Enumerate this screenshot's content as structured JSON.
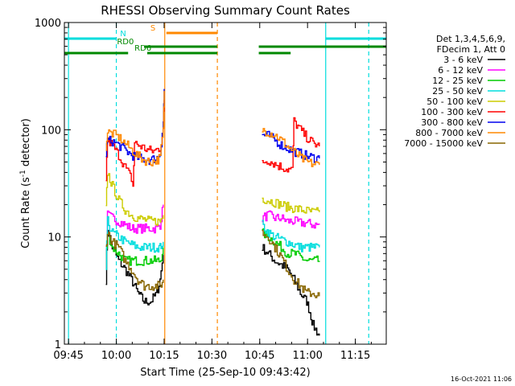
{
  "chart_data": {
    "type": "line",
    "title": "RHESSI Observing Summary Count Rates",
    "xlabel": "Start Time (25-Sep-10 09:43:42)",
    "ylabel_main": "Count Rate (s",
    "ylabel_sup": "-1",
    "ylabel_mid": " detector",
    "ylabel_end": ")",
    "yscale": "log",
    "ylim": [
      1,
      1000
    ],
    "xlim_minutes": [
      0,
      101
    ],
    "x_ticks": [
      {
        "m": 1.3,
        "label": "09:45"
      },
      {
        "m": 16.3,
        "label": "10:00"
      },
      {
        "m": 31.3,
        "label": "10:15"
      },
      {
        "m": 46.3,
        "label": "10:30"
      },
      {
        "m": 61.3,
        "label": "10:45"
      },
      {
        "m": 76.3,
        "label": "11:00"
      },
      {
        "m": 91.3,
        "label": "11:15"
      }
    ],
    "y_ticks": [
      {
        "v": 1,
        "label": "1"
      },
      {
        "v": 10,
        "label": "10"
      },
      {
        "v": 100,
        "label": "100"
      },
      {
        "v": 1000,
        "label": "1000"
      }
    ],
    "legend_header": [
      "Det 1,3,4,5,6,9,",
      "FDecim 1, Att 0"
    ],
    "series": [
      {
        "name": "3 - 6 keV",
        "color": "#000000",
        "segments": [
          [
            [
              13,
              4
            ],
            [
              13.5,
              12
            ],
            [
              15,
              8
            ],
            [
              17,
              6
            ],
            [
              19,
              5
            ],
            [
              21,
              4
            ],
            [
              23,
              3
            ],
            [
              25,
              2.5
            ],
            [
              27,
              2.5
            ],
            [
              29,
              3
            ],
            [
              30,
              4
            ],
            [
              31,
              7
            ]
          ],
          [
            [
              62,
              8
            ],
            [
              64,
              7
            ],
            [
              66,
              6
            ],
            [
              68,
              5.5
            ],
            [
              70,
              5
            ],
            [
              72,
              4
            ],
            [
              74,
              3
            ],
            [
              76,
              2.5
            ],
            [
              77,
              2
            ],
            [
              78,
              1.5
            ],
            [
              80,
              1.2
            ]
          ]
        ]
      },
      {
        "name": "6 - 12 keV",
        "color": "#ff00ff",
        "segments": [
          [
            [
              13,
              5
            ],
            [
              13.5,
              16
            ],
            [
              15,
              15
            ],
            [
              17,
              14
            ],
            [
              19,
              13
            ],
            [
              21,
              12
            ],
            [
              23,
              12
            ],
            [
              25,
              12
            ],
            [
              27,
              12
            ],
            [
              29,
              12
            ],
            [
              30,
              13
            ],
            [
              31,
              20
            ]
          ],
          [
            [
              62,
              15
            ],
            [
              64,
              16
            ],
            [
              66,
              15
            ],
            [
              68,
              15
            ],
            [
              70,
              14
            ],
            [
              72,
              14
            ],
            [
              74,
              13.5
            ],
            [
              76,
              13.5
            ],
            [
              78,
              13
            ],
            [
              80,
              13
            ]
          ]
        ]
      },
      {
        "name": "12 - 25 keV",
        "color": "#00cc00",
        "segments": [
          [
            [
              13,
              5
            ],
            [
              13.5,
              11
            ],
            [
              15,
              8
            ],
            [
              17,
              7
            ],
            [
              19,
              6
            ],
            [
              21,
              6
            ],
            [
              23,
              6
            ],
            [
              25,
              6
            ],
            [
              27,
              6
            ],
            [
              29,
              6
            ],
            [
              30,
              6
            ],
            [
              31,
              8
            ]
          ],
          [
            [
              62,
              11
            ],
            [
              64,
              10
            ],
            [
              66,
              9
            ],
            [
              68,
              8
            ],
            [
              70,
              7
            ],
            [
              72,
              7
            ],
            [
              74,
              6.5
            ],
            [
              76,
              6
            ],
            [
              78,
              6
            ],
            [
              80,
              6
            ]
          ]
        ]
      },
      {
        "name": "25 - 50 keV",
        "color": "#00dddd",
        "segments": [
          [
            [
              13,
              5
            ],
            [
              13.5,
              14
            ],
            [
              15,
              11
            ],
            [
              17,
              10
            ],
            [
              19,
              9
            ],
            [
              21,
              8.5
            ],
            [
              23,
              8
            ],
            [
              25,
              8
            ],
            [
              27,
              8
            ],
            [
              29,
              8
            ],
            [
              30,
              8
            ],
            [
              31,
              9
            ]
          ],
          [
            [
              62,
              13
            ],
            [
              64,
              11
            ],
            [
              66,
              10
            ],
            [
              68,
              9.5
            ],
            [
              70,
              9
            ],
            [
              72,
              8.5
            ],
            [
              74,
              8
            ],
            [
              76,
              8
            ],
            [
              78,
              8
            ],
            [
              80,
              8
            ]
          ]
        ]
      },
      {
        "name": "50 - 100 keV",
        "color": "#cccc00",
        "segments": [
          [
            [
              13,
              18
            ],
            [
              13.5,
              40
            ],
            [
              15,
              30
            ],
            [
              17,
              22
            ],
            [
              19,
              18
            ],
            [
              21,
              16
            ],
            [
              23,
              15
            ],
            [
              25,
              14.5
            ],
            [
              27,
              14
            ],
            [
              29,
              14
            ],
            [
              30,
              14
            ],
            [
              31,
              16
            ]
          ],
          [
            [
              62,
              23
            ],
            [
              64,
              22
            ],
            [
              66,
              21
            ],
            [
              68,
              20
            ],
            [
              70,
              19
            ],
            [
              72,
              18.5
            ],
            [
              74,
              18
            ],
            [
              76,
              17.5
            ],
            [
              78,
              17
            ],
            [
              80,
              17
            ]
          ]
        ]
      },
      {
        "name": "100 - 300 keV",
        "color": "#ff0000",
        "segments": [
          [
            [
              13,
              35
            ],
            [
              13.5,
              80
            ],
            [
              15,
              72
            ],
            [
              17,
              58
            ],
            [
              19,
              45
            ],
            [
              21,
              35
            ],
            [
              21.5,
              30
            ],
            [
              22,
              75
            ],
            [
              24,
              70
            ],
            [
              26,
              65
            ],
            [
              28,
              63
            ],
            [
              30,
              68
            ],
            [
              31,
              100
            ],
            [
              31.3,
              190
            ]
          ],
          [
            [
              62,
              50
            ],
            [
              64,
              52
            ],
            [
              66,
              48
            ],
            [
              68,
              45
            ],
            [
              70,
              43
            ],
            [
              71.5,
              42
            ],
            [
              72,
              120
            ],
            [
              74,
              100
            ],
            [
              76,
              85
            ],
            [
              78,
              75
            ],
            [
              80,
              70
            ]
          ]
        ]
      },
      {
        "name": "300 - 800 keV",
        "color": "#0000ee",
        "segments": [
          [
            [
              13,
              60
            ],
            [
              13.5,
              80
            ],
            [
              15,
              78
            ],
            [
              17,
              72
            ],
            [
              19,
              65
            ],
            [
              21,
              58
            ],
            [
              23,
              55
            ],
            [
              25,
              53
            ],
            [
              27,
              52
            ],
            [
              29,
              55
            ],
            [
              30,
              60
            ],
            [
              31,
              120
            ],
            [
              31.3,
              240
            ]
          ],
          [
            [
              62,
              90
            ],
            [
              64,
              88
            ],
            [
              66,
              80
            ],
            [
              68,
              72
            ],
            [
              70,
              67
            ],
            [
              72,
              63
            ],
            [
              74,
              60
            ],
            [
              76,
              57
            ],
            [
              78,
              55
            ],
            [
              80,
              54
            ]
          ]
        ]
      },
      {
        "name": "800 - 7000 keV",
        "color": "#ff8800",
        "segments": [
          [
            [
              13,
              70
            ],
            [
              13.5,
              95
            ],
            [
              15,
              92
            ],
            [
              17,
              85
            ],
            [
              19,
              75
            ],
            [
              21,
              65
            ],
            [
              23,
              57
            ],
            [
              25,
              52
            ],
            [
              27,
              50
            ],
            [
              29,
              52
            ],
            [
              30,
              55
            ],
            [
              31,
              100
            ],
            [
              31.3,
              230
            ]
          ],
          [
            [
              62,
              100
            ],
            [
              64,
              95
            ],
            [
              66,
              90
            ],
            [
              68,
              80
            ],
            [
              70,
              70
            ],
            [
              72,
              62
            ],
            [
              74,
              55
            ],
            [
              76,
              50
            ],
            [
              78,
              48
            ],
            [
              80,
              47
            ]
          ]
        ]
      },
      {
        "name": "7000 - 15000 keV",
        "color": "#886600",
        "segments": [
          [
            [
              13,
              8
            ],
            [
              13.5,
              11
            ],
            [
              15,
              9
            ],
            [
              17,
              8
            ],
            [
              19,
              6
            ],
            [
              21,
              5
            ],
            [
              23,
              4
            ],
            [
              25,
              3.5
            ],
            [
              27,
              3.5
            ],
            [
              29,
              3.5
            ],
            [
              30,
              3.5
            ],
            [
              31,
              4
            ]
          ],
          [
            [
              62,
              11
            ],
            [
              64,
              10
            ],
            [
              66,
              8
            ],
            [
              68,
              6.5
            ],
            [
              70,
              5
            ],
            [
              72,
              4
            ],
            [
              74,
              3.5
            ],
            [
              76,
              3
            ],
            [
              78,
              3
            ],
            [
              80,
              2.8
            ]
          ]
        ]
      }
    ],
    "state_bars": [
      {
        "label": "N",
        "color": "#00dddd",
        "segments": [
          [
            0,
            16.3
          ],
          [
            82,
            101
          ]
        ]
      },
      {
        "label": "S",
        "color": "#ff8800",
        "segments": [
          [
            32,
            48
          ]
        ]
      },
      {
        "label": "RD0",
        "color": "#008800",
        "segments": [
          [
            25,
            48
          ],
          [
            61,
            101
          ]
        ]
      },
      {
        "label": "RD6",
        "color": "#008800",
        "segments": [
          [
            0,
            20
          ],
          [
            26,
            48
          ],
          [
            61,
            71
          ]
        ]
      }
    ],
    "vlines": [
      {
        "m": 1.3,
        "color": "#00dddd",
        "style": "solid"
      },
      {
        "m": 16.3,
        "color": "#00dddd",
        "style": "dashed"
      },
      {
        "m": 31.5,
        "color": "#ff8800",
        "style": "solid"
      },
      {
        "m": 48,
        "color": "#ff8800",
        "style": "dashed"
      },
      {
        "m": 82,
        "color": "#00dddd",
        "style": "solid"
      },
      {
        "m": 95.5,
        "color": "#00dddd",
        "style": "dashed"
      }
    ],
    "timestamp": "16-Oct-2021 11:06"
  }
}
